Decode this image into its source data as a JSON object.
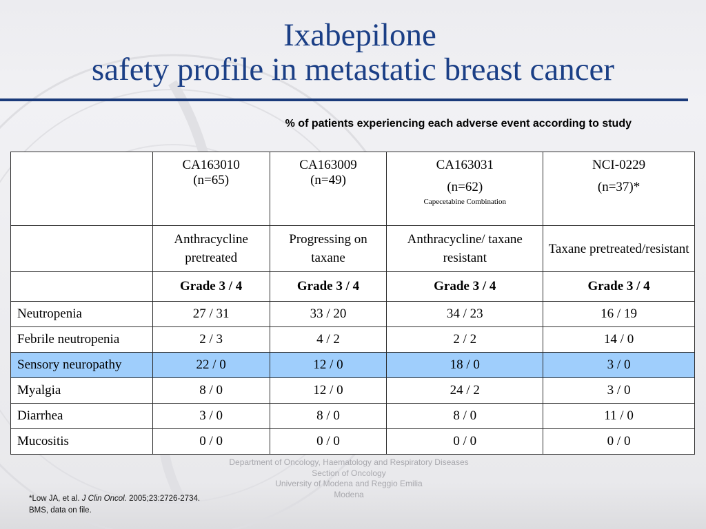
{
  "title": {
    "line1": "Ixabepilone",
    "line2": "safety profile in metastatic breast cancer"
  },
  "subtitle": "% of patients experiencing each adverse event according to study",
  "table": {
    "studies": [
      {
        "id": "CA163010",
        "n": "(n=65)",
        "note": "",
        "population": "Anthracycline pretreated",
        "grade": "Grade 3 / 4"
      },
      {
        "id": "CA163009",
        "n": "(n=49)",
        "note": "",
        "population": "Progressing on taxane",
        "grade": "Grade 3 / 4"
      },
      {
        "id": "CA163031",
        "n": "(n=62)",
        "note": "Capecetabine Combination",
        "population": "Anthracycline/ taxane resistant",
        "grade": "Grade 3 / 4"
      },
      {
        "id": "NCI-0229",
        "n": "(n=37)*",
        "note": "",
        "population": "Taxane pretreated/resistant",
        "grade": "Grade 3 / 4"
      }
    ],
    "rows": [
      {
        "event": "Neutropenia",
        "values": [
          "27 / 31",
          "33 / 20",
          "34 / 23",
          "16 / 19"
        ]
      },
      {
        "event": "Febrile neutropenia",
        "values": [
          "2 / 3",
          "4 / 2",
          "2 / 2",
          "14 / 0"
        ]
      },
      {
        "event": "Sensory neuropathy",
        "values": [
          "22 / 0",
          "12 / 0",
          "18 / 0",
          "3 / 0"
        ]
      },
      {
        "event": "Myalgia",
        "values": [
          "8 / 0",
          "12 / 0",
          "24 / 2",
          "3 / 0"
        ]
      },
      {
        "event": "Diarrhea",
        "values": [
          "3 / 0",
          "8 / 0",
          "8 / 0",
          "11 / 0"
        ]
      },
      {
        "event": "Mucositis",
        "values": [
          "0 / 0",
          "0 / 0",
          "0 / 0",
          "0 / 0"
        ]
      }
    ],
    "highlight_color": "#9fcefc"
  },
  "department": {
    "line1": "Department of Oncology, Haematology and Respiratory Diseases",
    "line2": "Section of Oncology",
    "line3": "University of Modena and Reggio Emilia",
    "line4": "Modena"
  },
  "references": {
    "ref1_prefix": "*Low JA, et al.",
    "ref1_journal": "J Clin Oncol.",
    "ref1_suffix": "2005;23:2726-2734.",
    "ref2": "BMS, data on file."
  },
  "colors": {
    "title": "#1b3f86",
    "rule": "#1a3a7a"
  }
}
